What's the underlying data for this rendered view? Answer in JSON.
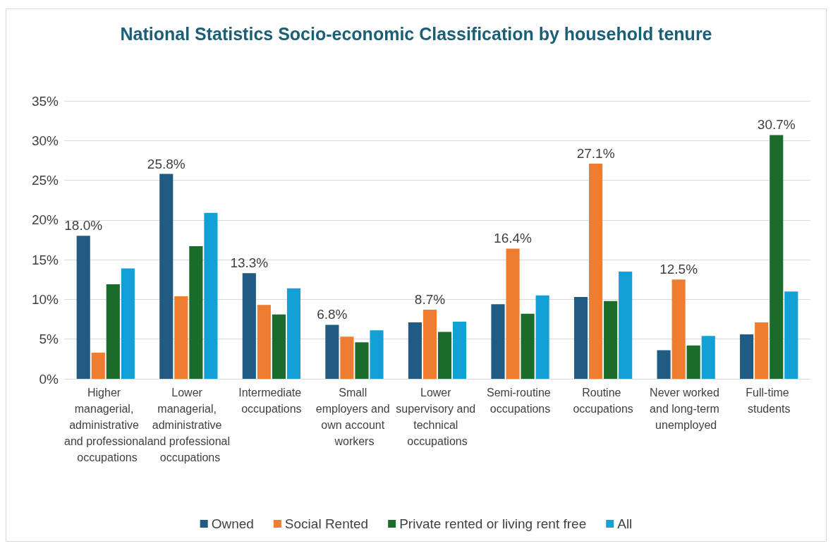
{
  "chart_data": {
    "type": "bar",
    "title": "National Statistics Socio-economic Classification by household tenure",
    "categories": [
      "Higher managerial, administrative and professional occupations",
      "Lower managerial, administrative and professional occupations",
      "Intermediate occupations",
      "Small employers and own account workers",
      "Lower supervisory and technical occupations",
      "Semi-routine occupations",
      "Routine occupations",
      "Never worked and long-term unemployed",
      "Full-time students"
    ],
    "series": [
      {
        "name": "Owned",
        "color": "#1f5b82",
        "values": [
          18.0,
          25.8,
          13.3,
          6.8,
          7.1,
          9.4,
          10.3,
          3.6,
          5.6
        ],
        "value_labels": [
          "18.0%",
          "25.8%",
          "13.3%",
          "6.8%",
          null,
          null,
          null,
          null,
          null
        ]
      },
      {
        "name": "Social Rented",
        "color": "#ed7d31",
        "values": [
          3.3,
          10.4,
          9.3,
          5.3,
          8.7,
          16.4,
          27.1,
          12.5,
          7.1
        ],
        "value_labels": [
          null,
          null,
          null,
          null,
          "8.7%",
          "16.4%",
          "27.1%",
          "12.5%",
          null
        ]
      },
      {
        "name": "Private rented or living rent free",
        "color": "#1b6b2b",
        "values": [
          11.9,
          16.7,
          8.1,
          4.6,
          5.9,
          8.2,
          9.8,
          4.2,
          30.7
        ],
        "value_labels": [
          null,
          null,
          null,
          null,
          null,
          null,
          null,
          null,
          "30.7%"
        ]
      },
      {
        "name": "All",
        "color": "#12a0d7",
        "values": [
          13.9,
          20.9,
          11.4,
          6.1,
          7.2,
          10.5,
          13.5,
          5.4,
          11.0
        ],
        "value_labels": [
          null,
          null,
          null,
          null,
          null,
          null,
          null,
          null,
          null
        ]
      }
    ],
    "ylim": [
      0,
      35
    ],
    "yticks": [
      {
        "value": 0,
        "label": "0%"
      },
      {
        "value": 5,
        "label": "5%"
      },
      {
        "value": 10,
        "label": "10%"
      },
      {
        "value": 15,
        "label": "15%"
      },
      {
        "value": 20,
        "label": "20%"
      },
      {
        "value": 25,
        "label": "25%"
      },
      {
        "value": 30,
        "label": "30%"
      },
      {
        "value": 35,
        "label": "35%"
      }
    ],
    "grid": "y",
    "legend": "bottom"
  }
}
